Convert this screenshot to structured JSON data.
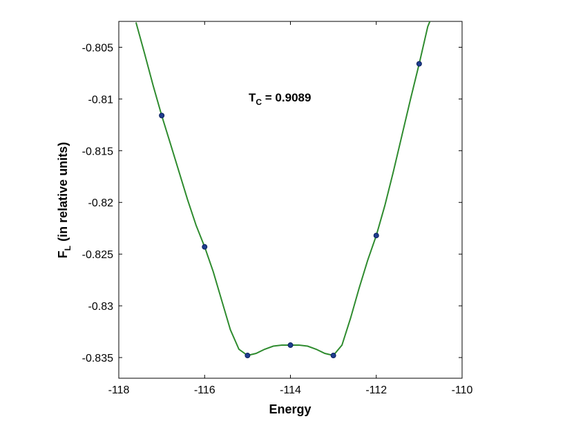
{
  "chart_data": {
    "type": "line",
    "xlabel": "Energy",
    "ylabel": {
      "main": "F",
      "sub": "L",
      "rest": "(in relative units)"
    },
    "annotation": {
      "main": "T",
      "sub": "C",
      "rest": " = 0.9089"
    },
    "xlim": [
      -118,
      -110
    ],
    "ylim": [
      -0.837,
      -0.8025
    ],
    "xticks": [
      -118,
      -116,
      -114,
      -112,
      -110
    ],
    "xtick_labels": [
      "-118",
      "-116",
      "-114",
      "-112",
      "-110"
    ],
    "yticks": [
      -0.805,
      -0.81,
      -0.815,
      -0.82,
      -0.825,
      -0.83,
      -0.835
    ],
    "ytick_labels": [
      "-0.805",
      "-0.81",
      "-0.815",
      "-0.82",
      "-0.825",
      "-0.83",
      "-0.835"
    ],
    "grid": false,
    "series": [
      {
        "marker": "dot",
        "color": "#1f3d8f",
        "x": [
          -117,
          -116,
          -115,
          -114,
          -113,
          -112,
          -111
        ],
        "y": [
          -0.8116,
          -0.8243,
          -0.8348,
          -0.8338,
          -0.8348,
          -0.8232,
          -0.8066
        ]
      }
    ],
    "fit_curve": {
      "color": "#2e8b2e",
      "x": [
        -117.6,
        -117.4,
        -117.2,
        -117.0,
        -116.8,
        -116.6,
        -116.4,
        -116.2,
        -116.0,
        -115.8,
        -115.6,
        -115.4,
        -115.2,
        -115.0,
        -114.8,
        -114.6,
        -114.4,
        -114.2,
        -114.0,
        -113.8,
        -113.6,
        -113.4,
        -113.2,
        -113.0,
        -112.8,
        -112.6,
        -112.4,
        -112.2,
        -112.0,
        -111.8,
        -111.6,
        -111.4,
        -111.2,
        -111.0,
        -110.8,
        -110.75
      ],
      "y": [
        -0.8026,
        -0.8056,
        -0.8087,
        -0.8116,
        -0.8143,
        -0.817,
        -0.8197,
        -0.8222,
        -0.8243,
        -0.8267,
        -0.8295,
        -0.8323,
        -0.8342,
        -0.8348,
        -0.8346,
        -0.8342,
        -0.8339,
        -0.8338,
        -0.8338,
        -0.8338,
        -0.8339,
        -0.8342,
        -0.8346,
        -0.8348,
        -0.8338,
        -0.8312,
        -0.8283,
        -0.8256,
        -0.8232,
        -0.8203,
        -0.817,
        -0.8135,
        -0.81,
        -0.8066,
        -0.803,
        -0.8025
      ]
    }
  }
}
